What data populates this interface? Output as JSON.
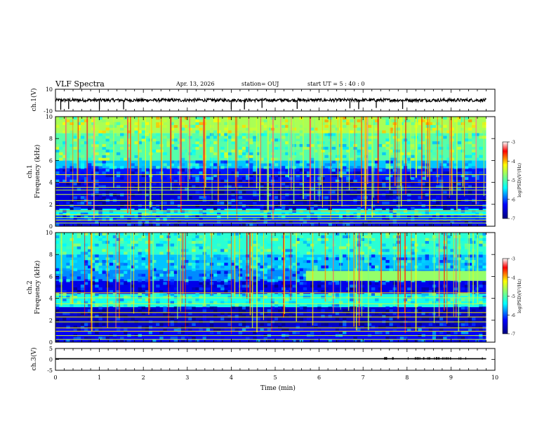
{
  "header": {
    "title": "VLF Spectra",
    "date": "Apr. 13, 2026",
    "station": "station= OUJ",
    "start_ut": "start UT =  5 : 40 : 0"
  },
  "colors": {
    "background": "#ffffff",
    "axes": "#000000",
    "colormap": [
      "#00007f",
      "#0000ff",
      "#00ffff",
      "#7fff7f",
      "#ffff00",
      "#ff0000",
      "#ffffff"
    ]
  },
  "chart_data": [
    {
      "id": "ch1-waveform",
      "type": "line",
      "ylabel": "ch.1(V)",
      "ylim": [
        -10,
        10
      ],
      "yticks": [
        "10",
        "-10"
      ],
      "xlim": [
        0,
        10
      ],
      "series": [
        {
          "x_range": [
            0,
            9.8
          ],
          "baseline": 0,
          "noise_amplitude": 1.5,
          "spikes_at": [
            0.12,
            0.3,
            1.0,
            1.55,
            4.0,
            4.3,
            4.7,
            5.5,
            6.7,
            6.9,
            7.3,
            7.9
          ]
        }
      ]
    },
    {
      "id": "ch1-spectrogram",
      "type": "heatmap",
      "ylabel": "ch.1",
      "ylabel2": "Frequency (kHz)",
      "ylim": [
        0,
        10
      ],
      "yticks": [
        "0",
        "2",
        "4",
        "6",
        "8",
        "10"
      ],
      "xlim": [
        0,
        10
      ],
      "x_data_end": 9.8,
      "colorbar": {
        "label": "log(PSD)(V²/Hz)",
        "range": [
          -7,
          -3
        ],
        "ticks": [
          "-3",
          "-4",
          "-5",
          "-6",
          "-7"
        ]
      },
      "bands": [
        {
          "from": 0,
          "to": 0.6,
          "level": -6.4
        },
        {
          "from": 0.6,
          "to": 1.0,
          "level": -6.0
        },
        {
          "from": 1.0,
          "to": 1.6,
          "level": -5.4
        },
        {
          "from": 1.6,
          "to": 4.0,
          "level": -6.5
        },
        {
          "from": 4.0,
          "to": 5.3,
          "level": -6.2
        },
        {
          "from": 5.3,
          "to": 6.0,
          "level": -5.6
        },
        {
          "from": 6.0,
          "to": 8.5,
          "level": -5.0
        },
        {
          "from": 8.5,
          "to": 10,
          "level": -4.6
        }
      ],
      "tone_lines_khz": [
        0.3,
        0.55,
        0.8,
        1.05,
        1.4,
        1.9,
        2.35,
        2.9,
        3.3,
        3.55,
        4.0,
        4.7
      ],
      "burst_count": 90
    },
    {
      "id": "ch2-spectrogram",
      "type": "heatmap",
      "ylabel": "ch.2",
      "ylabel2": "Frequency (kHz)",
      "ylim": [
        0,
        10
      ],
      "yticks": [
        "0",
        "2",
        "4",
        "6",
        "8",
        "10"
      ],
      "xlim": [
        0,
        10
      ],
      "x_data_end": 9.8,
      "colorbar": {
        "label": "log(PSD)(V²/Hz)",
        "range": [
          -7,
          -3
        ],
        "ticks": [
          "-3",
          "-4",
          "-5",
          "-6",
          "-7"
        ]
      },
      "bands": [
        {
          "from": 0,
          "to": 1.3,
          "level": -6.3
        },
        {
          "from": 1.3,
          "to": 3.2,
          "level": -6.6
        },
        {
          "from": 3.2,
          "to": 4.4,
          "level": -5.3
        },
        {
          "from": 4.4,
          "to": 5.6,
          "level": -6.4
        },
        {
          "from": 5.6,
          "to": 6.6,
          "level": -5.8
        },
        {
          "from": 6.6,
          "to": 8.0,
          "level": -5.6
        },
        {
          "from": 8.0,
          "to": 10,
          "level": -5.2
        }
      ],
      "late_band": {
        "from_min": 5.7,
        "from_khz": 5.6,
        "to_khz": 6.5,
        "level": -4.7
      },
      "tone_lines_khz": [
        0.25,
        0.6,
        1.0,
        1.3,
        1.85,
        2.3,
        2.7,
        3.5,
        4.05,
        4.5
      ],
      "burst_count": 70
    },
    {
      "id": "ch3-waveform",
      "type": "line",
      "ylabel": "ch.3(V)",
      "ylim": [
        -5,
        5
      ],
      "yticks": [
        "5",
        "0",
        "-5"
      ],
      "xlim": [
        0,
        10
      ],
      "xlabel": "Time (min)",
      "xticks": [
        "0",
        "1",
        "2",
        "3",
        "4",
        "5",
        "6",
        "7",
        "8",
        "9",
        "10"
      ],
      "series": [
        {
          "x_range": [
            0,
            9.8
          ],
          "baseline": 0.3,
          "late_activity_from": 7.4
        }
      ]
    }
  ]
}
